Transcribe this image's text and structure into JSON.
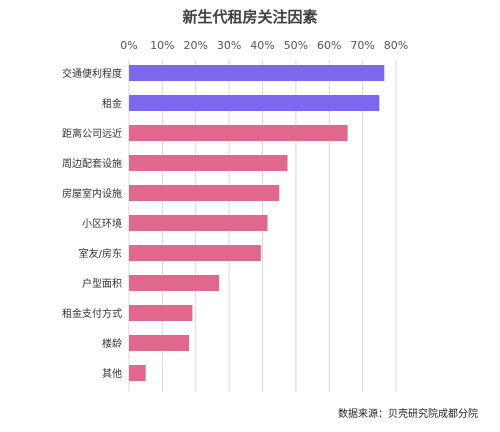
{
  "chart_data": {
    "type": "bar",
    "orientation": "horizontal",
    "title": "新生代租房关注因素",
    "categories": [
      "交通便利程度",
      "租金",
      "距离公司远近",
      "周边配套设施",
      "房屋室内设施",
      "小区环境",
      "室友/房东",
      "户型面积",
      "租金支付方式",
      "楼龄",
      "其他"
    ],
    "values": [
      76.5,
      75,
      65.5,
      47.5,
      45,
      41.5,
      39.5,
      27,
      19,
      18,
      5
    ],
    "xlim": [
      0,
      80
    ],
    "ticks": [
      0,
      10,
      20,
      30,
      40,
      50,
      60,
      70,
      80
    ],
    "tick_labels": [
      "0%",
      "10%",
      "20%",
      "30%",
      "40%",
      "50%",
      "60%",
      "70%",
      "80%"
    ],
    "xlabel": "",
    "ylabel": "",
    "grid": true,
    "axis_position": "top",
    "colors": {
      "highlight": "#7B68EE",
      "default": "#E0688C",
      "grid": "#D9D9D9",
      "label": "#555555"
    },
    "highlight_count": 2
  },
  "footer": {
    "source": "数据来源：贝壳研究院成都分院"
  }
}
